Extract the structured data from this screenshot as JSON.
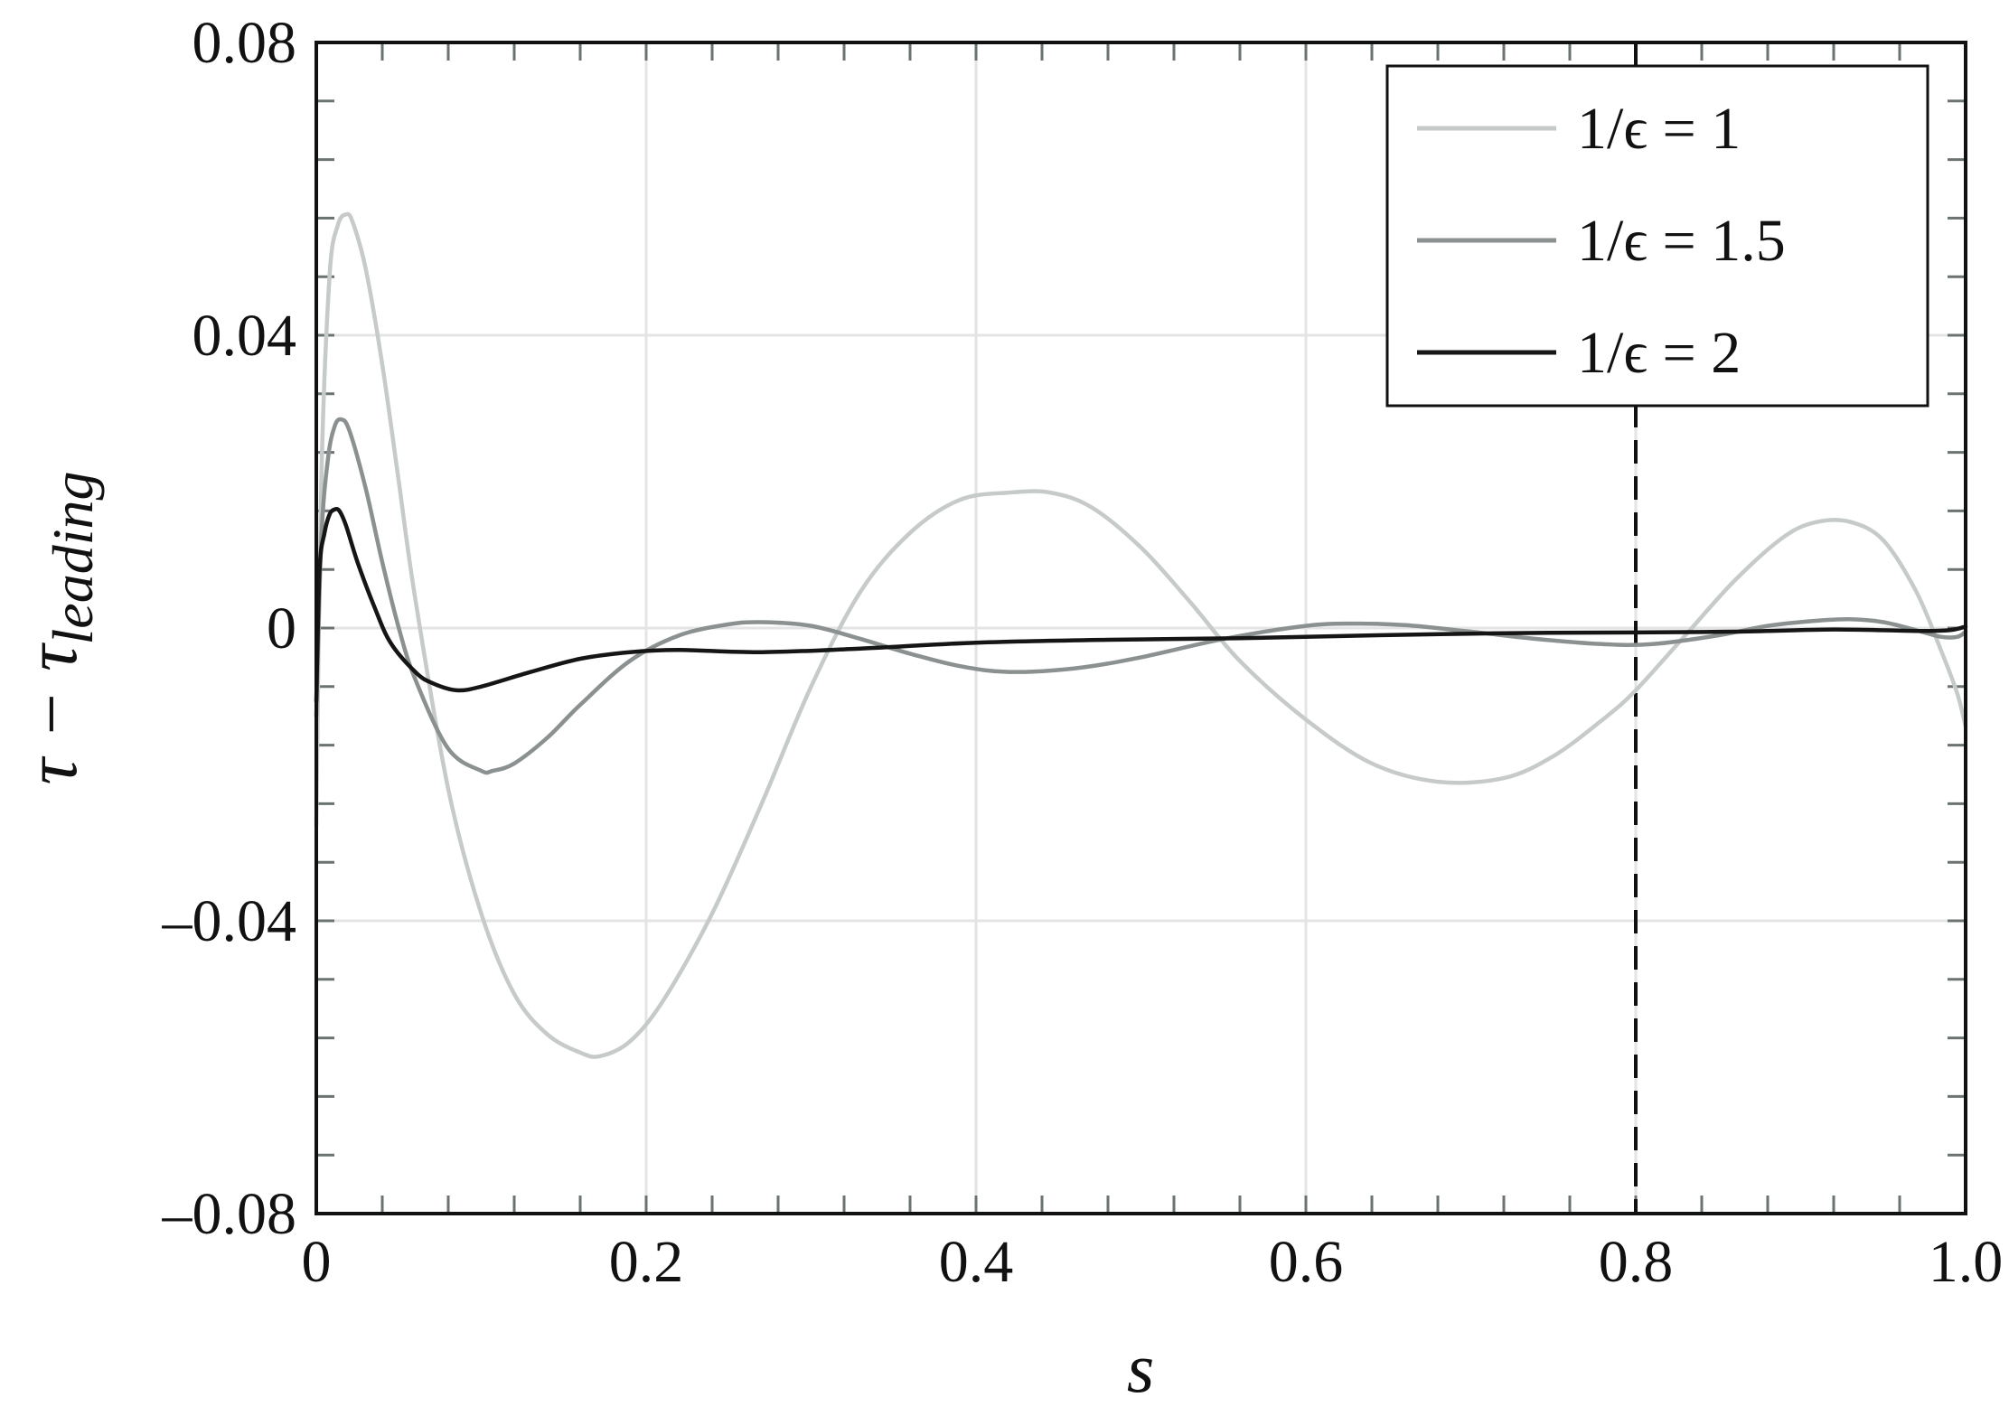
{
  "chart_data": {
    "type": "line",
    "title": "",
    "xlabel": "s",
    "ylabel_main": "τ − τ",
    "ylabel_sub": "leading",
    "xlim": [
      0,
      1
    ],
    "ylim": [
      -0.08,
      0.08
    ],
    "xticks": [
      {
        "value": 0,
        "label": "0"
      },
      {
        "value": 0.2,
        "label": "0.2"
      },
      {
        "value": 0.4,
        "label": "0.4"
      },
      {
        "value": 0.6,
        "label": "0.6"
      },
      {
        "value": 0.8,
        "label": "0.8"
      },
      {
        "value": 1.0,
        "label": "1.0"
      }
    ],
    "yticks": [
      {
        "value": 0.08,
        "label": "0.08"
      },
      {
        "value": 0.04,
        "label": "0.04"
      },
      {
        "value": 0,
        "label": "0"
      },
      {
        "value": -0.04,
        "label": "–0.04"
      },
      {
        "value": -0.08,
        "label": "–0.08"
      }
    ],
    "grid": true,
    "legend_position": "top-right",
    "reference_line": {
      "x": 0.8,
      "style": "dashed"
    },
    "series": [
      {
        "name": "1/ϵ = 1",
        "color": "#c6cac9",
        "x": [
          0,
          0.003,
          0.008,
          0.013,
          0.018,
          0.022,
          0.03,
          0.04,
          0.05,
          0.06,
          0.08,
          0.1,
          0.12,
          0.14,
          0.16,
          0.172,
          0.19,
          0.21,
          0.24,
          0.27,
          0.3,
          0.33,
          0.36,
          0.39,
          0.42,
          0.445,
          0.47,
          0.5,
          0.53,
          0.56,
          0.6,
          0.64,
          0.68,
          0.72,
          0.75,
          0.78,
          0.8,
          0.83,
          0.86,
          0.89,
          0.91,
          0.93,
          0.95,
          0.97,
          0.985,
          0.995,
          1.0
        ],
        "y": [
          -0.027,
          0.02,
          0.048,
          0.055,
          0.0565,
          0.0555,
          0.049,
          0.036,
          0.02,
          0.004,
          -0.022,
          -0.039,
          -0.05,
          -0.0555,
          -0.058,
          -0.0585,
          -0.0565,
          -0.051,
          -0.039,
          -0.024,
          -0.008,
          0.005,
          0.013,
          0.0175,
          0.0185,
          0.0185,
          0.0165,
          0.011,
          0.0035,
          -0.0045,
          -0.0125,
          -0.0185,
          -0.021,
          -0.0205,
          -0.0175,
          -0.0125,
          -0.0085,
          -0.001,
          0.0065,
          0.0125,
          0.0145,
          0.0145,
          0.012,
          0.005,
          -0.003,
          -0.009,
          -0.0135
        ]
      },
      {
        "name": "1/ϵ = 1.5",
        "color": "#8a9190",
        "x": [
          0,
          0.003,
          0.007,
          0.011,
          0.015,
          0.02,
          0.03,
          0.04,
          0.05,
          0.06,
          0.08,
          0.1,
          0.107,
          0.12,
          0.14,
          0.16,
          0.19,
          0.22,
          0.25,
          0.27,
          0.3,
          0.33,
          0.36,
          0.39,
          0.42,
          0.46,
          0.5,
          0.55,
          0.6,
          0.63,
          0.66,
          0.7,
          0.74,
          0.78,
          0.81,
          0.85,
          0.88,
          0.91,
          0.93,
          0.95,
          0.97,
          0.985,
          0.995,
          1.0
        ],
        "y": [
          -0.012,
          0.012,
          0.023,
          0.0275,
          0.0285,
          0.027,
          0.019,
          0.009,
          0.0,
          -0.007,
          -0.0165,
          -0.0195,
          -0.0195,
          -0.0185,
          -0.015,
          -0.0105,
          -0.0045,
          -0.001,
          0.0005,
          0.0008,
          0.0003,
          -0.0015,
          -0.0035,
          -0.0052,
          -0.006,
          -0.0055,
          -0.004,
          -0.0015,
          0.0003,
          0.0006,
          0.0004,
          -0.0005,
          -0.0015,
          -0.0022,
          -0.0022,
          -0.001,
          0.0003,
          0.001,
          0.0012,
          0.0008,
          -0.0003,
          -0.0012,
          -0.0012,
          -0.0005
        ]
      },
      {
        "name": "1/ϵ = 2",
        "color": "#151515",
        "x": [
          0,
          0.002,
          0.005,
          0.008,
          0.011,
          0.014,
          0.018,
          0.025,
          0.035,
          0.045,
          0.06,
          0.07,
          0.085,
          0.1,
          0.13,
          0.16,
          0.19,
          0.22,
          0.27,
          0.33,
          0.4,
          0.48,
          0.56,
          0.64,
          0.72,
          0.8,
          0.86,
          0.92,
          0.97,
          0.99,
          1.0
        ],
        "y": [
          -0.01,
          0.008,
          0.013,
          0.0155,
          0.0162,
          0.016,
          0.014,
          0.009,
          0.003,
          -0.002,
          -0.006,
          -0.0075,
          -0.0085,
          -0.008,
          -0.006,
          -0.0042,
          -0.0033,
          -0.003,
          -0.0033,
          -0.0028,
          -0.002,
          -0.0016,
          -0.0014,
          -0.001,
          -0.0007,
          -0.0006,
          -0.0005,
          -0.0002,
          -0.0004,
          -0.0003,
          0.0002
        ]
      }
    ]
  }
}
